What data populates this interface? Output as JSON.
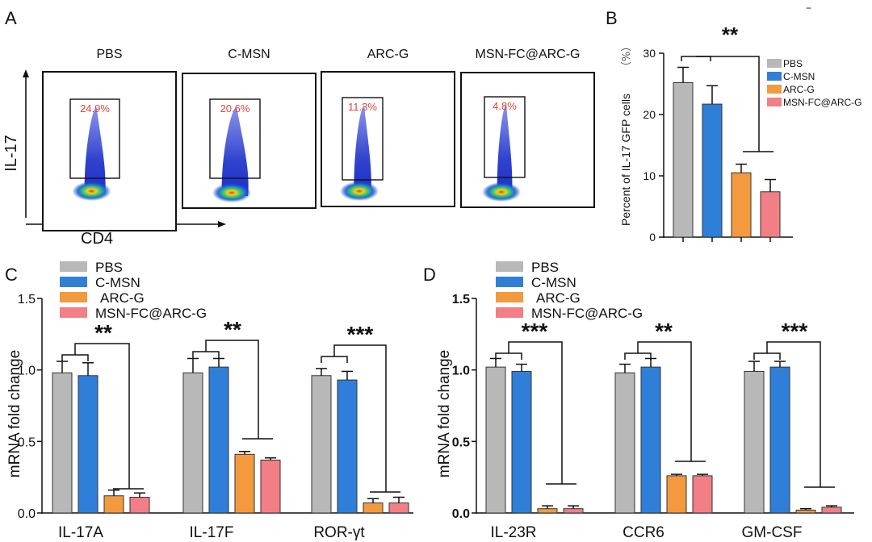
{
  "panel_labels": {
    "a": "A",
    "b": "B",
    "c": "C",
    "d": "D"
  },
  "colors": {
    "PBS": "#b8b8b8",
    "C-MSN": "#2f7fd9",
    "ARC-G": "#f39a3f",
    "MSN-FC@ARC-G": "#f27f85",
    "gate": "#e0443c",
    "axis": "#111111"
  },
  "corner_mark": "−",
  "chart_data": [
    {
      "type": "scatter",
      "subtype": "flow-cytometry",
      "panel": "A",
      "xlabel": "CD4",
      "ylabel": "IL-17",
      "plots": [
        {
          "title": "PBS",
          "gate": "24.9%"
        },
        {
          "title": "C-MSN",
          "gate": "20.6%"
        },
        {
          "title": "ARC-G",
          "gate": "11.3%"
        },
        {
          "title": "MSN-FC@ARC-G",
          "gate": "4.8%"
        }
      ]
    },
    {
      "type": "bar",
      "panel": "B",
      "ylabel": "Percent of IL-17 GFP cells",
      "yunit": "（%）",
      "ylim": [
        0,
        30
      ],
      "yticks": [
        "0",
        "10",
        "20",
        "30"
      ],
      "legend": [
        "PBS",
        "C-MSN",
        "ARC-G",
        "MSN-FC@ARC-G"
      ],
      "legend_position": "top-right",
      "values": [
        25.2,
        21.7,
        10.5,
        7.4
      ],
      "errors": [
        2.5,
        3.0,
        1.4,
        2.0
      ],
      "significance": "**"
    },
    {
      "type": "bar",
      "panel": "C",
      "ylabel": "mRNA fold change",
      "ylim": [
        0,
        1.5
      ],
      "yticks": [
        "0.0",
        "0.5",
        "1.0",
        "1.5"
      ],
      "legend": [
        "PBS",
        "C-MSN",
        "ARC-G",
        "MSN-FC@ARC-G"
      ],
      "legend_position": "top-left",
      "categories": [
        "IL-17A",
        "IL-17F",
        "ROR-γt"
      ],
      "series": [
        {
          "name": "PBS",
          "values": [
            0.98,
            0.98,
            0.96
          ],
          "errors": [
            0.08,
            0.1,
            0.05
          ]
        },
        {
          "name": "C-MSN",
          "values": [
            0.96,
            1.02,
            0.93
          ],
          "errors": [
            0.09,
            0.06,
            0.06
          ]
        },
        {
          "name": "ARC-G",
          "values": [
            0.12,
            0.41,
            0.07
          ],
          "errors": [
            0.04,
            0.02,
            0.03
          ]
        },
        {
          "name": "MSN-FC@ARC-G",
          "values": [
            0.11,
            0.37,
            0.07
          ],
          "errors": [
            0.03,
            0.015,
            0.04
          ]
        }
      ],
      "significance": [
        "**",
        "**",
        "***"
      ]
    },
    {
      "type": "bar",
      "panel": "D",
      "ylabel": "mRNA fold change",
      "ylim": [
        0,
        1.5
      ],
      "yticks": [
        "0.0",
        "0.5",
        "1.0",
        "1.5"
      ],
      "legend": [
        "PBS",
        "C-MSN",
        "ARC-G",
        "MSN-FC@ARC-G"
      ],
      "legend_position": "top-left",
      "categories": [
        "IL-23R",
        "CCR6",
        "GM-CSF"
      ],
      "series": [
        {
          "name": "PBS",
          "values": [
            1.02,
            0.98,
            0.99
          ],
          "errors": [
            0.06,
            0.06,
            0.07
          ]
        },
        {
          "name": "C-MSN",
          "values": [
            0.99,
            1.02,
            1.02
          ],
          "errors": [
            0.05,
            0.06,
            0.04
          ]
        },
        {
          "name": "ARC-G",
          "values": [
            0.03,
            0.26,
            0.02
          ],
          "errors": [
            0.02,
            0.01,
            0.01
          ]
        },
        {
          "name": "MSN-FC@ARC-G",
          "values": [
            0.03,
            0.26,
            0.04
          ],
          "errors": [
            0.02,
            0.01,
            0.01
          ]
        }
      ],
      "significance": [
        "***",
        "**",
        "***"
      ]
    }
  ]
}
